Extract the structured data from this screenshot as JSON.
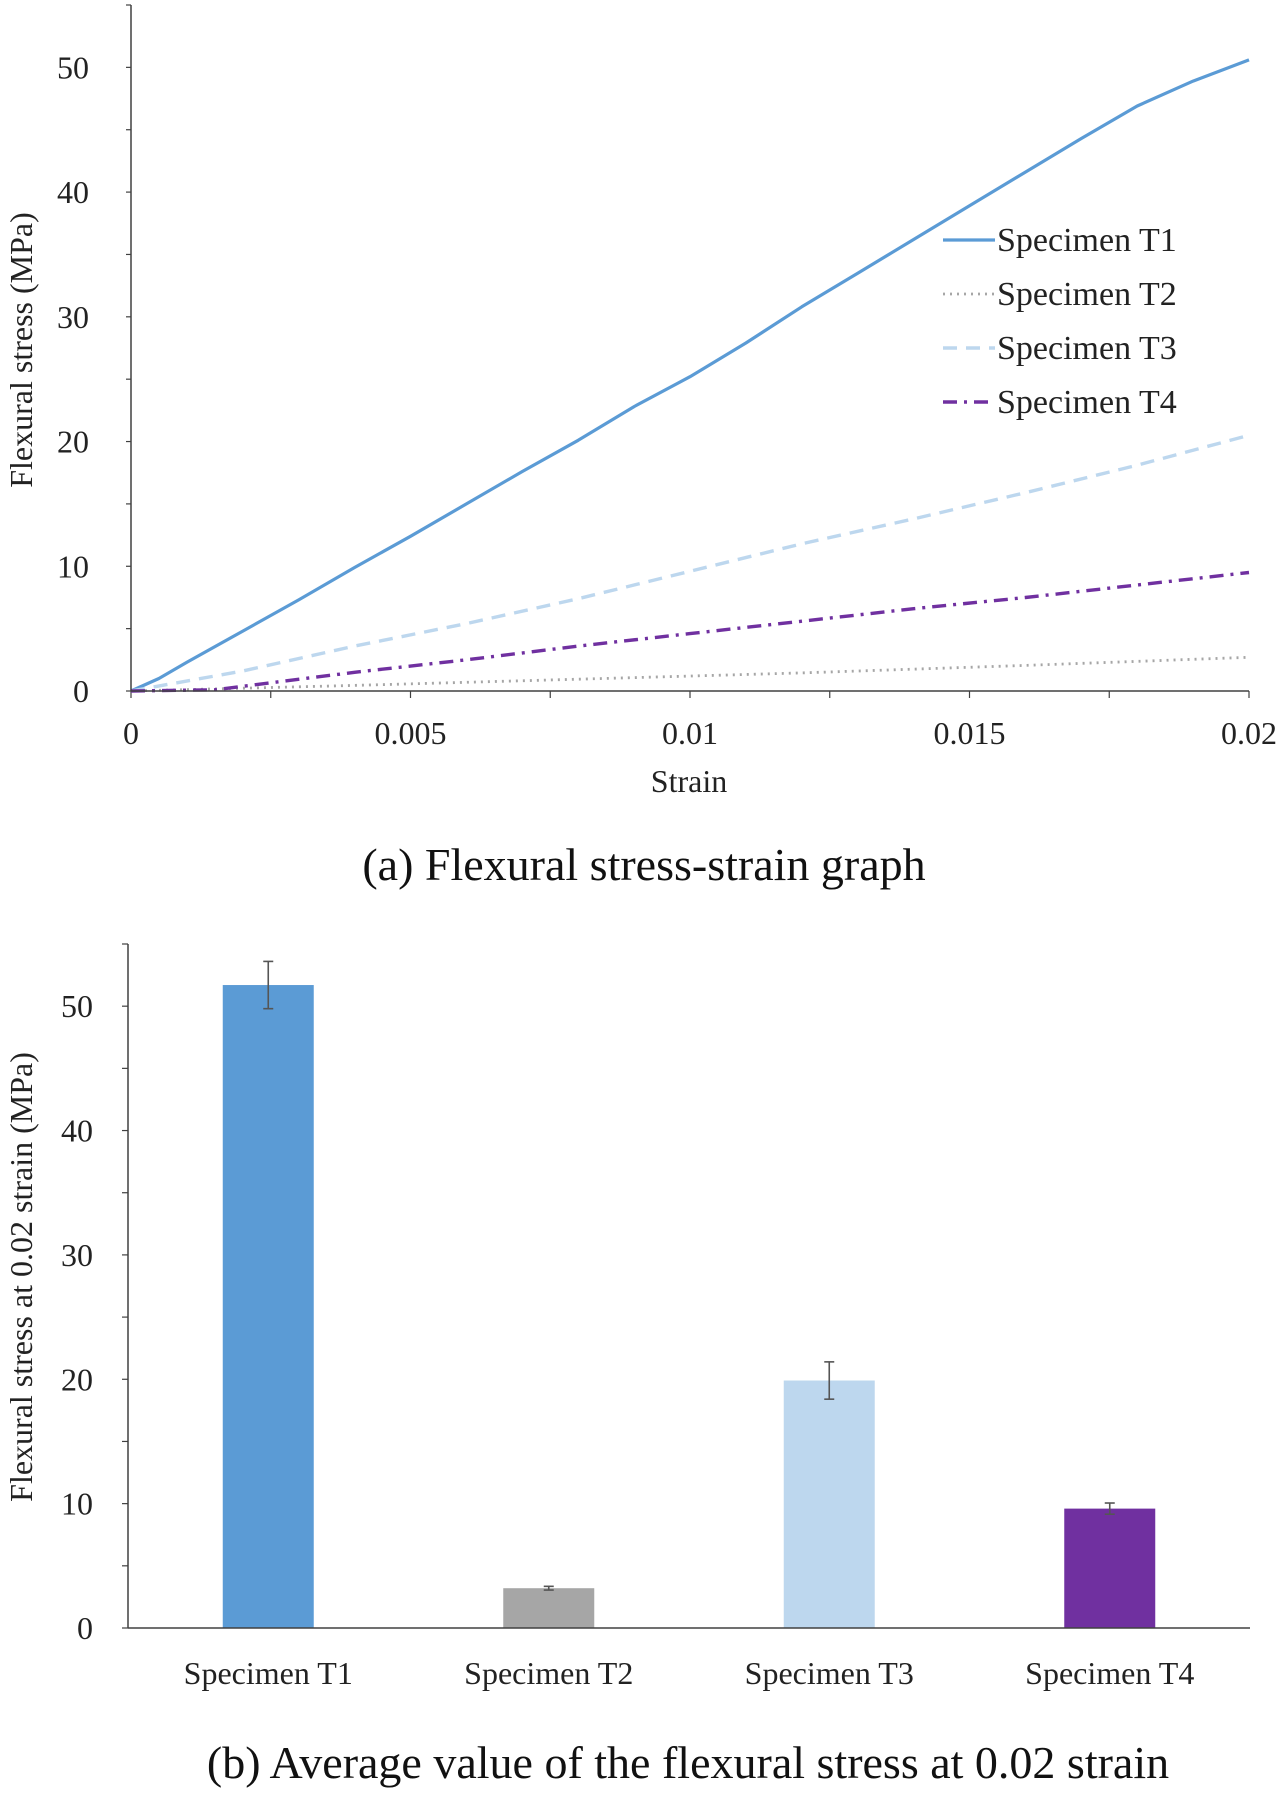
{
  "chart_data": [
    {
      "type": "line",
      "caption": "(a) Flexural stress-strain graph",
      "xlabel": "Strain",
      "ylabel": "Flexural stress (MPa)",
      "xlim": [
        0,
        0.02
      ],
      "ylim": [
        0,
        55
      ],
      "xticks": [
        "0",
        "0.005",
        "0.01",
        "0.015",
        "0.02"
      ],
      "yticks": [
        "0",
        "10",
        "20",
        "30",
        "40",
        "50"
      ],
      "legend_position": "center-right",
      "series": [
        {
          "name": "Specimen T1",
          "color": "#5b9bd5",
          "style": "solid",
          "x": [
            0,
            0.0005,
            0.001,
            0.002,
            0.003,
            0.004,
            0.005,
            0.006,
            0.007,
            0.008,
            0.009,
            0.01,
            0.011,
            0.012,
            0.013,
            0.014,
            0.015,
            0.016,
            0.017,
            0.018,
            0.019,
            0.02
          ],
          "y": [
            0,
            1.0,
            2.3,
            4.8,
            7.3,
            9.9,
            12.4,
            15.0,
            17.6,
            20.1,
            22.8,
            25.2,
            27.9,
            30.8,
            33.5,
            36.2,
            38.9,
            41.6,
            44.3,
            46.9,
            48.9,
            50.6
          ]
        },
        {
          "name": "Specimen T2",
          "color": "#a6a6a6",
          "style": "dotted",
          "x": [
            0,
            0.004,
            0.008,
            0.012,
            0.016,
            0.02
          ],
          "y": [
            0,
            0.45,
            0.95,
            1.45,
            2.05,
            2.7
          ]
        },
        {
          "name": "Specimen T3",
          "color": "#bdd7ee",
          "style": "dashed",
          "x": [
            0,
            0.002,
            0.004,
            0.006,
            0.008,
            0.01,
            0.012,
            0.014,
            0.016,
            0.018,
            0.02
          ],
          "y": [
            0,
            1.6,
            3.6,
            5.4,
            7.4,
            9.6,
            11.8,
            13.8,
            15.9,
            18.1,
            20.5
          ]
        },
        {
          "name": "Specimen T4",
          "color": "#7030a0",
          "style": "dash-dot",
          "x": [
            0,
            0.0015,
            0.004,
            0.006,
            0.008,
            0.01,
            0.012,
            0.014,
            0.016,
            0.018,
            0.02
          ],
          "y": [
            0,
            0.1,
            1.5,
            2.5,
            3.6,
            4.6,
            5.6,
            6.6,
            7.5,
            8.5,
            9.5
          ]
        }
      ]
    },
    {
      "type": "bar",
      "caption": "(b) Average value of the flexural stress at 0.02 strain",
      "xlabel": "",
      "ylabel": "Flexural stress at 0.02 strain (MPa)",
      "ylim": [
        0,
        55
      ],
      "yticks": [
        "0",
        "10",
        "20",
        "30",
        "40",
        "50"
      ],
      "categories": [
        "Specimen T1",
        "Specimen T2",
        "Specimen T3",
        "Specimen T4"
      ],
      "values": [
        51.7,
        3.2,
        19.9,
        9.6
      ],
      "errors": [
        1.9,
        0.15,
        1.5,
        0.45
      ],
      "colors": [
        "#5b9bd5",
        "#a6a6a6",
        "#bdd7ee",
        "#7030a0"
      ]
    }
  ]
}
